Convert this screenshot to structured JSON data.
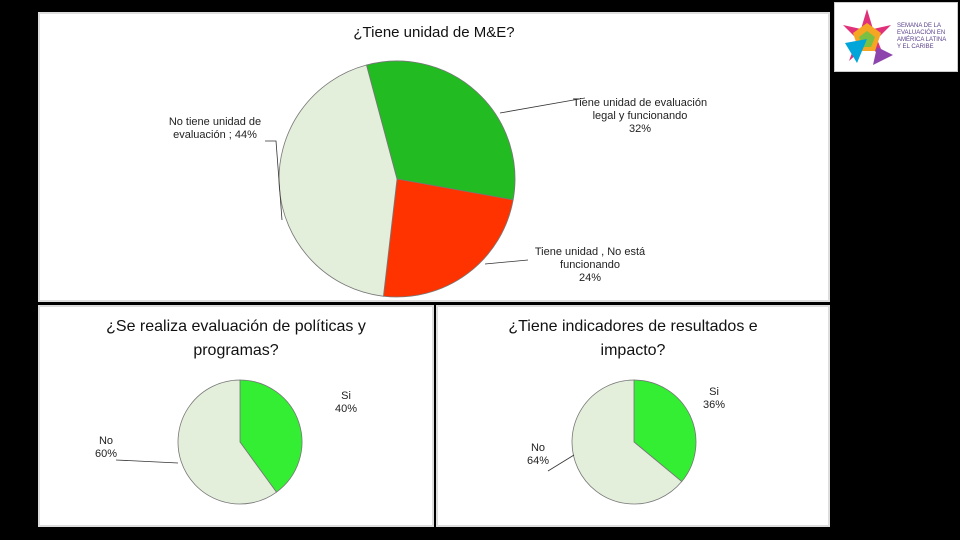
{
  "logo": {
    "text_lines": [
      "SEMANA DE LA",
      "EVALUACIÓN EN",
      "AMÉRICA LATINA",
      "Y EL CARIBE"
    ]
  },
  "chart_data": [
    {
      "type": "pie",
      "title": "¿Tiene unidad de M&E?",
      "slices": [
        {
          "label_lines": [
            "Tiene unidad de evaluación",
            "legal y funcionando",
            "32%"
          ],
          "value": 32,
          "color": "#22bb22"
        },
        {
          "label_lines": [
            "Tiene unidad , No está",
            "funcionando",
            "24%"
          ],
          "value": 24,
          "color": "#ff3300"
        },
        {
          "label_lines": [
            "No tiene unidad de",
            "evaluación ; 44%"
          ],
          "value": 44,
          "color": "#e3eedb"
        }
      ]
    },
    {
      "type": "pie",
      "title": "¿Se realiza evaluación de políticas y programas?",
      "slices": [
        {
          "label_lines": [
            "Si",
            "40%"
          ],
          "value": 40,
          "color": "#33ee33"
        },
        {
          "label_lines": [
            "No",
            "60%"
          ],
          "value": 60,
          "color": "#e3eedb"
        }
      ]
    },
    {
      "type": "pie",
      "title": "¿Tiene indicadores de resultados e impacto?",
      "slices": [
        {
          "label_lines": [
            "Si",
            "36%"
          ],
          "value": 36,
          "color": "#33ee33"
        },
        {
          "label_lines": [
            "No",
            "64%"
          ],
          "value": 64,
          "color": "#e3eedb"
        }
      ]
    }
  ]
}
